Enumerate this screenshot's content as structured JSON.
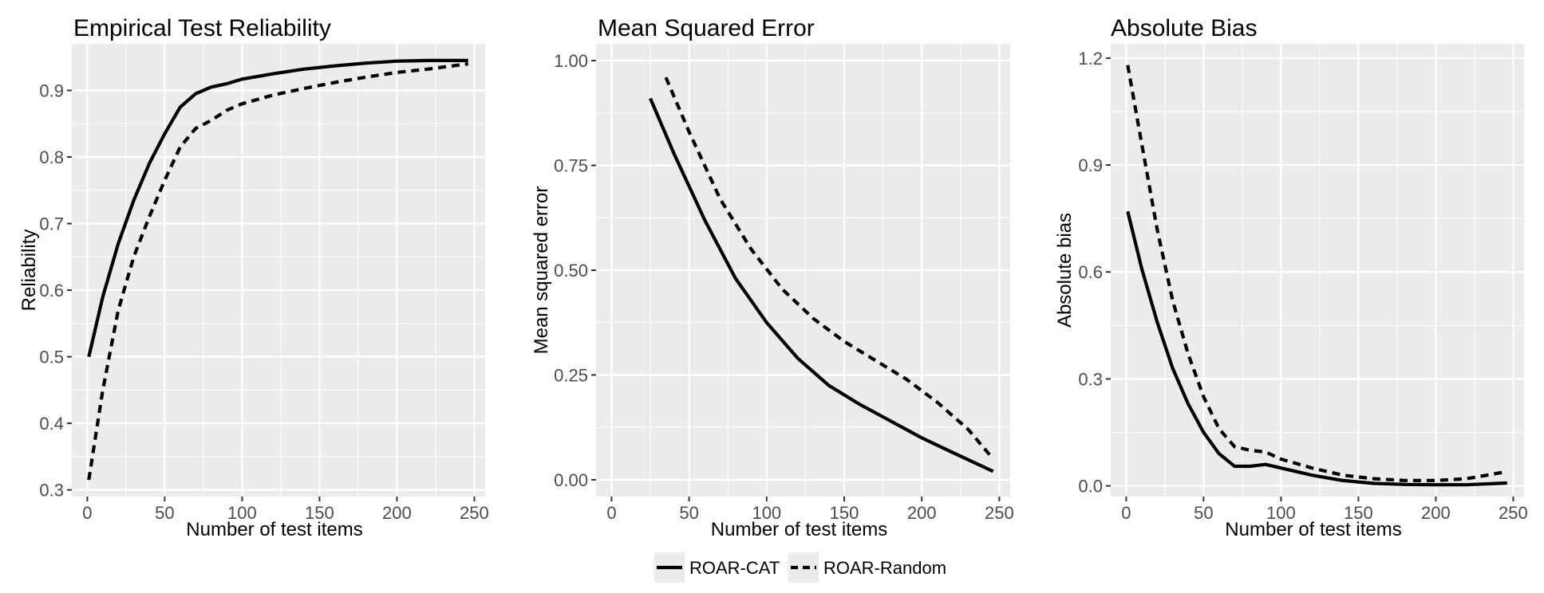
{
  "chart_data": [
    {
      "type": "line",
      "title": "Empirical Test Reliability",
      "xlabel": "Number of test items",
      "ylabel": "Reliability",
      "xlim": [
        -10,
        257
      ],
      "ylim": [
        0.29,
        0.97
      ],
      "xticks": [
        0,
        50,
        100,
        150,
        200,
        250
      ],
      "xtick_labels": [
        "0",
        "50",
        "100",
        "150",
        "200",
        "250"
      ],
      "yticks": [
        0.3,
        0.4,
        0.5,
        0.6,
        0.7,
        0.8,
        0.9
      ],
      "ytick_labels": [
        "0.3",
        "0.4",
        "0.5",
        "0.6",
        "0.7",
        "0.8",
        "0.9"
      ],
      "grid": true,
      "series": [
        {
          "name": "ROAR-CAT",
          "dash": "solid",
          "x": [
            1,
            10,
            20,
            30,
            40,
            50,
            60,
            70,
            80,
            90,
            100,
            120,
            140,
            160,
            180,
            200,
            220,
            246
          ],
          "y": [
            0.5,
            0.59,
            0.67,
            0.735,
            0.79,
            0.835,
            0.875,
            0.895,
            0.905,
            0.91,
            0.917,
            0.925,
            0.932,
            0.937,
            0.941,
            0.944,
            0.945,
            0.945
          ]
        },
        {
          "name": "ROAR-Random",
          "dash": "dashed",
          "x": [
            1,
            10,
            20,
            30,
            40,
            50,
            60,
            70,
            80,
            90,
            100,
            120,
            140,
            160,
            180,
            200,
            220,
            246
          ],
          "y": [
            0.315,
            0.45,
            0.57,
            0.65,
            0.71,
            0.765,
            0.815,
            0.843,
            0.855,
            0.87,
            0.88,
            0.893,
            0.903,
            0.912,
            0.92,
            0.927,
            0.932,
            0.94
          ]
        }
      ]
    },
    {
      "type": "line",
      "title": "Mean Squared Error",
      "xlabel": "Number of test items",
      "ylabel": "Mean squared error",
      "xlim": [
        -10,
        257
      ],
      "ylim": [
        -0.04,
        1.04
      ],
      "xticks": [
        0,
        50,
        100,
        150,
        200,
        250
      ],
      "xtick_labels": [
        "0",
        "50",
        "100",
        "150",
        "200",
        "250"
      ],
      "yticks": [
        0.0,
        0.25,
        0.5,
        0.75,
        1.0
      ],
      "ytick_labels": [
        "0.00",
        "0.25",
        "0.50",
        "0.75",
        "1.00"
      ],
      "grid": true,
      "series": [
        {
          "name": "ROAR-CAT",
          "dash": "solid",
          "x": [
            25,
            40,
            60,
            80,
            100,
            120,
            140,
            160,
            180,
            200,
            220,
            246
          ],
          "y": [
            0.91,
            0.78,
            0.62,
            0.48,
            0.375,
            0.29,
            0.225,
            0.18,
            0.14,
            0.1,
            0.065,
            0.02
          ]
        },
        {
          "name": "ROAR-Random",
          "dash": "dashed",
          "x": [
            35,
            50,
            70,
            90,
            110,
            130,
            150,
            170,
            190,
            210,
            230,
            246
          ],
          "y": [
            0.96,
            0.83,
            0.67,
            0.55,
            0.455,
            0.385,
            0.33,
            0.285,
            0.24,
            0.185,
            0.12,
            0.05
          ]
        }
      ]
    },
    {
      "type": "line",
      "title": "Absolute Bias",
      "xlabel": "Number of test items",
      "ylabel": "Absolute bias",
      "xlim": [
        -10,
        257
      ],
      "ylim": [
        -0.03,
        1.24
      ],
      "xticks": [
        0,
        50,
        100,
        150,
        200,
        250
      ],
      "xtick_labels": [
        "0",
        "50",
        "100",
        "150",
        "200",
        "250"
      ],
      "yticks": [
        0.0,
        0.3,
        0.6,
        0.9,
        1.2
      ],
      "ytick_labels": [
        "0.0",
        "0.3",
        "0.6",
        "0.9",
        "1.2"
      ],
      "grid": true,
      "series": [
        {
          "name": "ROAR-CAT",
          "dash": "solid",
          "x": [
            1,
            10,
            20,
            30,
            40,
            50,
            60,
            70,
            80,
            90,
            100,
            120,
            140,
            160,
            180,
            200,
            220,
            246
          ],
          "y": [
            0.77,
            0.61,
            0.46,
            0.33,
            0.23,
            0.15,
            0.09,
            0.055,
            0.055,
            0.06,
            0.05,
            0.03,
            0.015,
            0.007,
            0.004,
            0.003,
            0.003,
            0.008
          ]
        },
        {
          "name": "ROAR-Random",
          "dash": "dashed",
          "x": [
            1,
            10,
            20,
            30,
            40,
            50,
            60,
            70,
            80,
            90,
            100,
            120,
            140,
            160,
            180,
            200,
            220,
            246
          ],
          "y": [
            1.18,
            0.96,
            0.72,
            0.52,
            0.37,
            0.25,
            0.16,
            0.11,
            0.1,
            0.095,
            0.075,
            0.05,
            0.03,
            0.02,
            0.015,
            0.015,
            0.02,
            0.04
          ]
        }
      ]
    }
  ],
  "legend": {
    "placement": "bottom",
    "items": [
      {
        "label": "ROAR-CAT",
        "dash": "solid"
      },
      {
        "label": "ROAR-Random",
        "dash": "dashed"
      }
    ]
  }
}
